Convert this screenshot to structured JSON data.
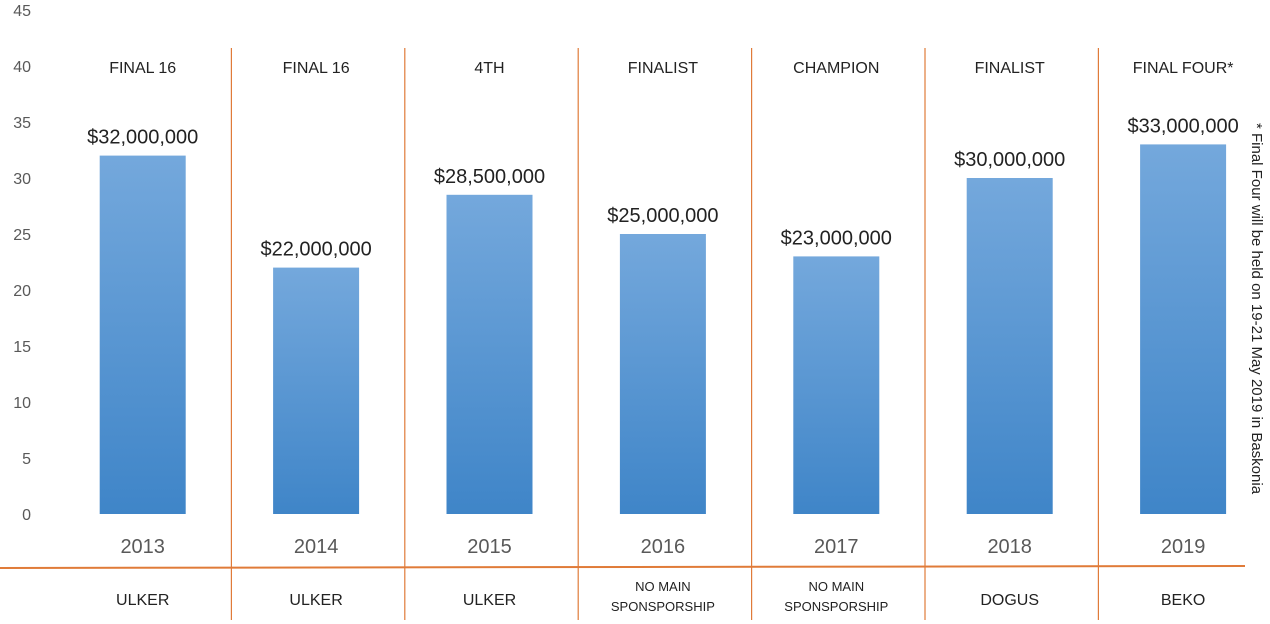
{
  "chart_data": {
    "type": "bar",
    "categories": [
      "2013",
      "2014",
      "2015",
      "2016",
      "2017",
      "2018",
      "2019"
    ],
    "values": [
      32,
      22,
      28.5,
      25,
      23,
      30,
      33
    ],
    "data_labels": [
      "$32,000,000",
      "$22,000,000",
      "$28,500,000",
      "$25,000,000",
      "$23,000,000",
      "$30,000,000",
      "$33,000,000"
    ],
    "results": [
      "FINAL 16",
      "FINAL 16",
      "4TH",
      "FINALIST",
      "CHAMPION",
      "FINALIST",
      "FINAL FOUR*"
    ],
    "sponsors": [
      [
        "ULKER"
      ],
      [
        "ULKER"
      ],
      [
        "ULKER"
      ],
      [
        "NO MAIN",
        "SPONSPORSHIP"
      ],
      [
        "NO MAIN",
        "SPONSPORSHIP"
      ],
      [
        "DOGUS"
      ],
      [
        "BEKO"
      ]
    ],
    "ylim": [
      0,
      45
    ],
    "yticks": [
      0,
      5,
      10,
      15,
      20,
      25,
      30,
      35,
      40,
      45
    ],
    "grid": false,
    "footnote": "* Final Four will be held on 19-21 May 2019 in Baskonia",
    "colors": {
      "bar_top": "#74a8dc",
      "bar_bottom": "#3f85c8",
      "divider": "#e07b39",
      "axis_text": "#595959",
      "label_text": "#222222"
    }
  }
}
